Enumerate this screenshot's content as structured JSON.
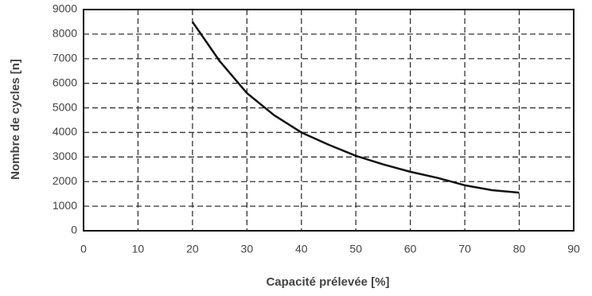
{
  "chart_data": {
    "type": "line",
    "x_label": "Capacité prélevée [%]",
    "y_label": "Nombre de cycles [n]",
    "x": [
      20,
      25,
      30,
      35,
      40,
      45,
      50,
      55,
      60,
      65,
      70,
      75,
      80
    ],
    "series": [
      {
        "name": "cycles",
        "color": "#111111",
        "values": [
          8500,
          6900,
          5600,
          4700,
          4000,
          3500,
          3050,
          2700,
          2400,
          2150,
          1850,
          1650,
          1550
        ]
      }
    ],
    "xlim": [
      0,
      90
    ],
    "xticks": [
      0,
      10,
      20,
      30,
      40,
      50,
      60,
      70,
      80,
      90
    ],
    "ylim": [
      0,
      9000
    ],
    "yticks": [
      0,
      1000,
      2000,
      3000,
      4000,
      5000,
      6000,
      7000,
      8000,
      9000
    ],
    "grid": true
  }
}
